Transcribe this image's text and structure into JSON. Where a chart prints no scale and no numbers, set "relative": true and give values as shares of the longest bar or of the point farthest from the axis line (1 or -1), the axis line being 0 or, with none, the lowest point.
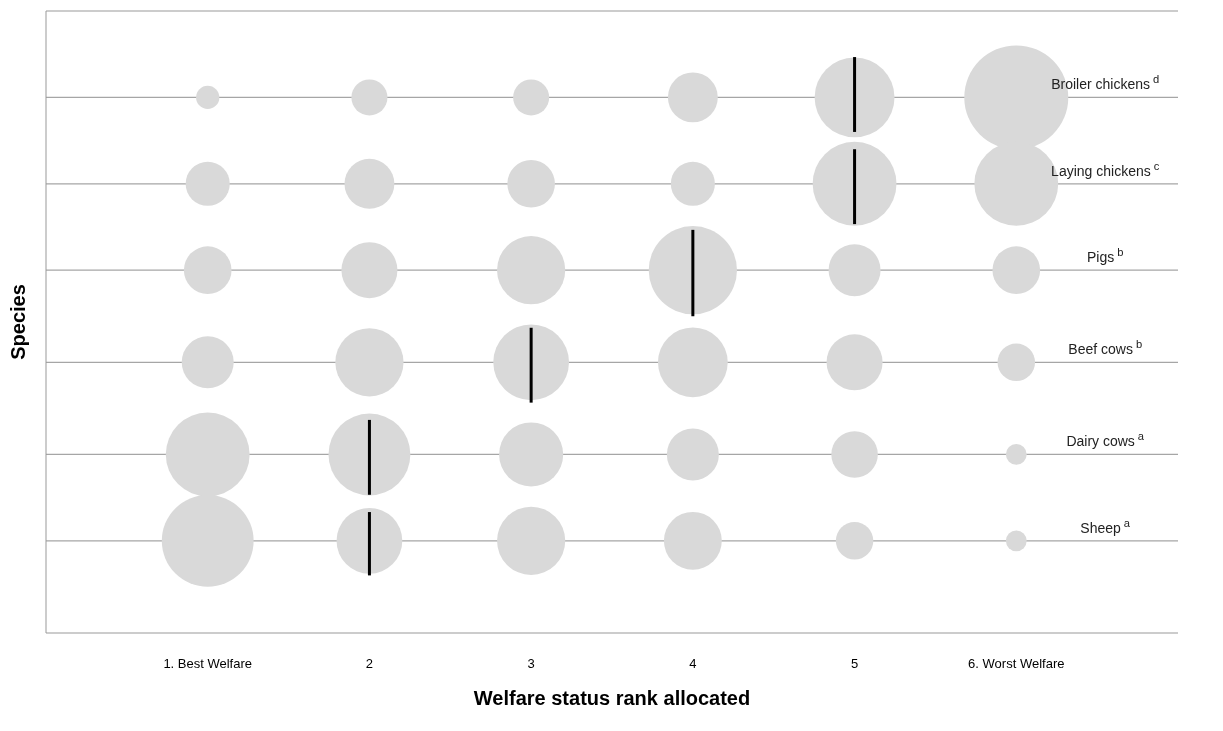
{
  "chart_data": {
    "type": "bubble",
    "relative": true,
    "xlabel": "Welfare status rank allocated",
    "ylabel": "Species",
    "categories": [
      "1. Best Welfare",
      "2",
      "3",
      "4",
      "5",
      "6. Worst Welfare"
    ],
    "series": [
      {
        "name": "Broiler chickens$^{d}$",
        "color": "#d9d9d9",
        "values": [
          0.93,
          0.93,
          0.93,
          0.93,
          0.93,
          0.93
        ],
        "sizes": [
          0.05,
          0.12,
          0.12,
          0.23,
          0.59,
          1
        ]
      },
      {
        "name": "Laying chickens$^{c}$",
        "color": "#d9d9d9",
        "values": [
          0.78,
          0.78,
          0.78,
          0.78,
          0.78,
          0.78
        ],
        "sizes": [
          0.18,
          0.23,
          0.21,
          0.18,
          0.65,
          0.65
        ]
      },
      {
        "name": "Pigs$^{b}$",
        "color": "#d9d9d9",
        "values": [
          0.63,
          0.63,
          0.63,
          0.63,
          0.63,
          0.63
        ],
        "sizes": [
          0.21,
          0.29,
          0.43,
          0.72,
          0.25,
          0.21
        ]
      },
      {
        "name": "Beef cows$^{b}$",
        "color": "#d9d9d9",
        "values": [
          0.47,
          0.47,
          0.47,
          0.47,
          0.47,
          0.47
        ],
        "sizes": [
          0.25,
          0.43,
          0.53,
          0.45,
          0.29,
          0.13
        ]
      },
      {
        "name": "Dairy cows$^{a}$",
        "color": "#d9d9d9",
        "values": [
          0.31,
          0.31,
          0.31,
          0.31,
          0.31,
          0.31
        ],
        "sizes": [
          0.65,
          0.62,
          0.38,
          0.25,
          0.2,
          0.04
        ]
      },
      {
        "name": "Sheep$^{a}$",
        "color": "#d9d9d9",
        "values": [
          0.16,
          0.16,
          0.16,
          0.16,
          0.16,
          0.16
        ],
        "sizes": [
          0.78,
          0.4,
          0.43,
          0.31,
          0.13,
          0.04
        ]
      },
      {
        "type": "line",
        "color": "#000000",
        "x": [
          "5",
          "5"
        ],
        "values": [
          0.87,
          1
        ]
      },
      {
        "type": "line",
        "color": "#000000",
        "x": [
          "5",
          "5"
        ],
        "values": [
          0.71,
          0.84
        ]
      },
      {
        "type": "line",
        "color": "#000000",
        "x": [
          "4",
          "4"
        ],
        "values": [
          0.55,
          0.7
        ]
      },
      {
        "type": "line",
        "color": "#000000",
        "x": [
          "3",
          "3"
        ],
        "values": [
          0.4,
          0.53
        ]
      },
      {
        "type": "line",
        "color": "#000000",
        "x": [
          "2",
          "2"
        ],
        "values": [
          0.24,
          0.37
        ]
      },
      {
        "type": "line",
        "color": "#000000",
        "x": [
          "2",
          "2"
        ],
        "values": [
          0.1,
          0.21
        ]
      }
    ],
    "ref_lines": [
      {
        "axis": "y",
        "value": 0.93,
        "color": "#a6a6a6"
      },
      {
        "axis": "y",
        "value": 0.78,
        "color": "#a6a6a6"
      },
      {
        "axis": "y",
        "value": 0.63,
        "color": "#a6a6a6"
      },
      {
        "axis": "y",
        "value": 0.47,
        "color": "#a6a6a6"
      },
      {
        "axis": "y",
        "value": 0.31,
        "color": "#a6a6a6"
      },
      {
        "axis": "y",
        "value": 0.16,
        "color": "#a6a6a6"
      }
    ]
  }
}
